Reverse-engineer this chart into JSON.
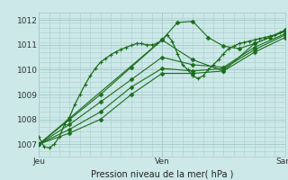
{
  "bg_color": "#cce8e8",
  "grid_color": "#aacccc",
  "line_color": "#1a6e1a",
  "marker_color": "#1a6e1a",
  "xlim": [
    0,
    48
  ],
  "ylim": [
    1006.5,
    1012.3
  ],
  "yticks": [
    1007,
    1008,
    1009,
    1010,
    1011,
    1012
  ],
  "xtick_labels": [
    "Jeu",
    "Ven",
    "Sam"
  ],
  "xtick_positions": [
    0,
    24,
    48
  ],
  "xlabel": "Pression niveau de la mer( hPa )",
  "line1_x": [
    0,
    1,
    2,
    3,
    4,
    5,
    6,
    7,
    8,
    9,
    10,
    11,
    12,
    13,
    14,
    15,
    16,
    17,
    18,
    19,
    20,
    21,
    22,
    23,
    24,
    25,
    26,
    27,
    28,
    29,
    30,
    31,
    32,
    33,
    34,
    35,
    36,
    37,
    38,
    39,
    40,
    41,
    42,
    43,
    44,
    45,
    46,
    47,
    48
  ],
  "line1_y": [
    1007.3,
    1006.9,
    1006.85,
    1007.0,
    1007.3,
    1007.8,
    1008.1,
    1008.6,
    1009.0,
    1009.4,
    1009.75,
    1010.05,
    1010.3,
    1010.45,
    1010.6,
    1010.72,
    1010.82,
    1010.9,
    1010.98,
    1011.05,
    1011.05,
    1011.0,
    1011.0,
    1011.05,
    1011.2,
    1011.4,
    1011.15,
    1010.65,
    1010.2,
    1010.0,
    1009.75,
    1009.65,
    1009.75,
    1010.0,
    1010.2,
    1010.4,
    1010.65,
    1010.85,
    1010.95,
    1011.05,
    1011.1,
    1011.15,
    1011.2,
    1011.25,
    1011.3,
    1011.35,
    1011.4,
    1011.5,
    1011.55
  ],
  "line2_x": [
    0,
    6,
    12,
    18,
    24,
    30,
    36,
    42,
    48
  ],
  "line2_y": [
    1007.0,
    1008.0,
    1009.0,
    1010.1,
    1011.2,
    1010.4,
    1009.95,
    1011.05,
    1011.55
  ],
  "line3_x": [
    0,
    6,
    12,
    18,
    24,
    30,
    36,
    42,
    48
  ],
  "line3_y": [
    1007.0,
    1007.8,
    1008.7,
    1009.6,
    1010.5,
    1010.2,
    1010.1,
    1010.9,
    1011.45
  ],
  "line4_x": [
    0,
    6,
    12,
    18,
    24,
    30,
    36,
    42,
    48
  ],
  "line4_y": [
    1007.0,
    1007.6,
    1008.3,
    1009.3,
    1010.05,
    1009.95,
    1010.05,
    1010.8,
    1011.4
  ],
  "line5_x": [
    0,
    6,
    12,
    18,
    24,
    30,
    36,
    42,
    48
  ],
  "line5_y": [
    1007.0,
    1007.45,
    1008.0,
    1009.0,
    1009.85,
    1009.85,
    1009.95,
    1010.7,
    1011.3
  ],
  "line6_x": [
    0,
    24,
    27,
    30,
    33,
    36,
    39,
    42,
    45,
    48
  ],
  "line6_y": [
    1007.0,
    1011.2,
    1011.9,
    1011.95,
    1011.3,
    1010.95,
    1010.85,
    1011.05,
    1011.3,
    1011.6
  ]
}
